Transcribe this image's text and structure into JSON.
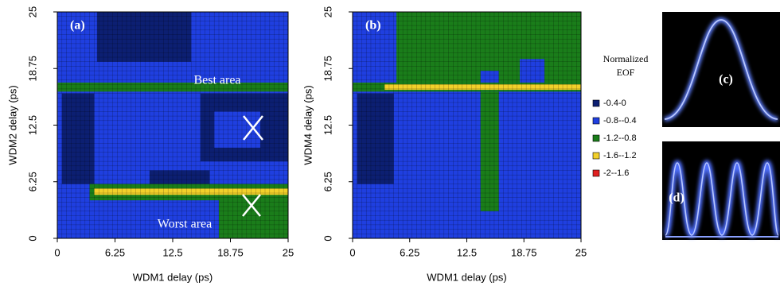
{
  "chart_data": [
    {
      "type": "contour",
      "panel_label": "(a)",
      "xlabel": "WDM1 delay (ps)",
      "ylabel": "WDM2 delay (ps)",
      "xlim": [
        0,
        25
      ],
      "ylim": [
        0,
        25
      ],
      "xticks": [
        0,
        6.25,
        12.5,
        18.75,
        25
      ],
      "yticks": [
        0,
        6.25,
        12.5,
        18.75,
        25
      ],
      "annotations": [
        "Best area",
        "Worst area"
      ],
      "regions": [
        {
          "z": -0.6,
          "x": [
            0,
            25
          ],
          "y": [
            0,
            25
          ]
        },
        {
          "z": -0.2,
          "x": [
            4.3,
            14.5
          ],
          "y": [
            19.5,
            25
          ]
        },
        {
          "z": -0.2,
          "x": [
            0.5,
            4
          ],
          "y": [
            6,
            16
          ]
        },
        {
          "z": -0.2,
          "x": [
            15.5,
            25
          ],
          "y": [
            8.5,
            16
          ]
        },
        {
          "z": -0.6,
          "x": [
            17,
            22
          ],
          "y": [
            10,
            14
          ]
        },
        {
          "z": -0.2,
          "x": [
            10,
            16.5
          ],
          "y": [
            5.5,
            7.5
          ]
        },
        {
          "z": -1.0,
          "x": [
            0,
            25
          ],
          "y": [
            16.2,
            17.2
          ]
        },
        {
          "z": -1.0,
          "x": [
            3.5,
            25
          ],
          "y": [
            4.2,
            6
          ]
        },
        {
          "z": -1.4,
          "x": [
            4,
            25
          ],
          "y": [
            4.8,
            5.5
          ]
        },
        {
          "z": -1.0,
          "x": [
            17.5,
            25
          ],
          "y": [
            0,
            4.5
          ]
        }
      ]
    },
    {
      "type": "contour",
      "panel_label": "(b)",
      "xlabel": "WDM1 delay (ps)",
      "ylabel": "WDM4 delay (ps)",
      "xlim": [
        0,
        25
      ],
      "ylim": [
        0,
        25
      ],
      "xticks": [
        0,
        6.25,
        12.5,
        18.75,
        25
      ],
      "yticks": [
        0,
        6.25,
        12.5,
        18.75,
        25
      ],
      "regions": [
        {
          "z": -0.6,
          "x": [
            0,
            25
          ],
          "y": [
            0,
            25
          ]
        },
        {
          "z": -1.0,
          "x": [
            4.8,
            25
          ],
          "y": [
            17,
            25
          ]
        },
        {
          "z": -0.6,
          "x": [
            18.3,
            21
          ],
          "y": [
            17,
            19.8
          ]
        },
        {
          "z": -0.6,
          "x": [
            14,
            16
          ],
          "y": [
            17,
            18.5
          ]
        },
        {
          "z": -1.0,
          "x": [
            0,
            25
          ],
          "y": [
            16.2,
            17.2
          ]
        },
        {
          "z": -1.4,
          "x": [
            3.5,
            25
          ],
          "y": [
            16.4,
            17
          ]
        },
        {
          "z": -1.0,
          "x": [
            14,
            16
          ],
          "y": [
            3,
            16.2
          ]
        },
        {
          "z": -0.2,
          "x": [
            0.5,
            4.5
          ],
          "y": [
            6,
            16
          ]
        }
      ]
    }
  ],
  "legend": {
    "title": [
      "Normalized",
      "EOF"
    ],
    "levels": [
      {
        "label": "-0.4-0",
        "range": [
          -0.4,
          0
        ],
        "color": "#0c1f72"
      },
      {
        "label": "-0.8--0.4",
        "range": [
          -0.8,
          -0.4
        ],
        "color": "#1f3fe0"
      },
      {
        "label": "-1.2--0.8",
        "range": [
          -1.2,
          -0.8
        ],
        "color": "#1a7d1a"
      },
      {
        "label": "-1.6--1.2",
        "range": [
          -1.6,
          -1.2
        ],
        "color": "#f2d02a"
      },
      {
        "label": "-2--1.6",
        "range": [
          -2,
          -1.6
        ],
        "color": "#e02020"
      }
    ]
  },
  "insets": [
    {
      "label": "(c)"
    },
    {
      "label": "(d)"
    }
  ]
}
